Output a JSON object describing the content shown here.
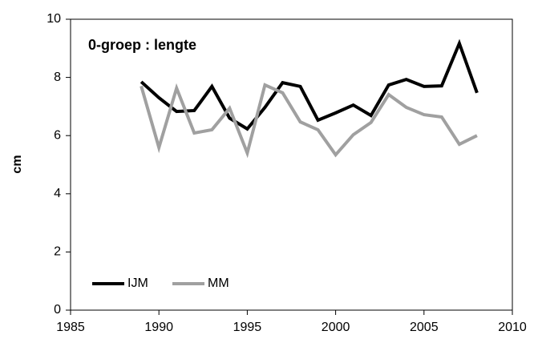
{
  "chart_data": {
    "type": "line",
    "title": "0-groep : lengte",
    "y_label": "cm",
    "x": [
      1989,
      1990,
      1991,
      1992,
      1993,
      1994,
      1995,
      1996,
      1997,
      1998,
      1999,
      2000,
      2001,
      2002,
      2003,
      2004,
      2005,
      2006,
      2007,
      2008
    ],
    "series": [
      {
        "name": "IJM",
        "color": "#000000",
        "values": [
          7.85,
          7.3,
          6.83,
          6.86,
          7.69,
          6.6,
          6.23,
          6.97,
          7.82,
          7.69,
          6.53,
          6.78,
          7.05,
          6.69,
          7.74,
          7.93,
          7.69,
          7.71,
          9.17,
          7.47
        ]
      },
      {
        "name": "MM",
        "color": "#a0a0a0",
        "values": [
          7.7,
          5.59,
          7.63,
          6.09,
          6.2,
          6.94,
          5.4,
          7.74,
          7.47,
          6.47,
          6.2,
          5.34,
          6.03,
          6.45,
          7.41,
          6.97,
          6.72,
          6.64,
          5.7,
          6.0
        ]
      }
    ],
    "xlim": [
      1985,
      2010
    ],
    "xticks": [
      1985,
      1990,
      1995,
      2000,
      2005,
      2010
    ],
    "ylim": [
      0,
      10
    ],
    "yticks": [
      0,
      2,
      4,
      6,
      8,
      10
    ],
    "grid": false,
    "legend": "lower left"
  }
}
